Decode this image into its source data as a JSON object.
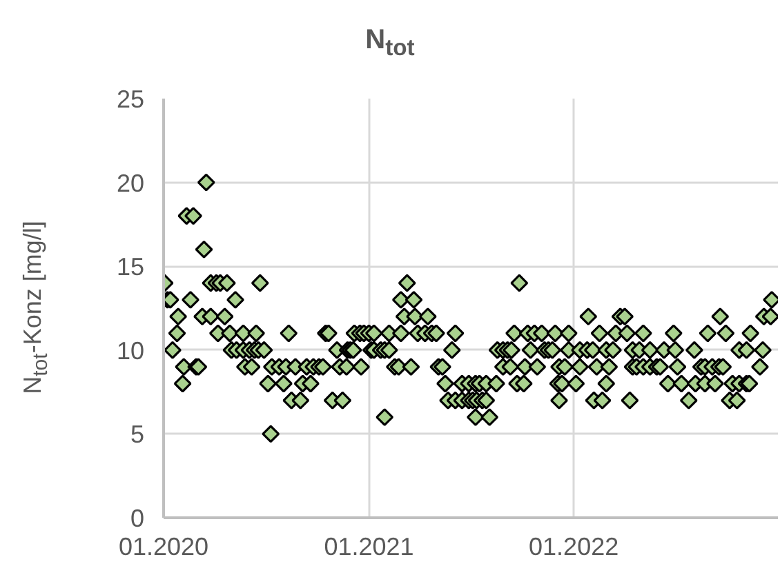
{
  "chart_data": {
    "type": "scatter",
    "title": "N$_{tot}$",
    "ylabel": "N$_{tot}$-Konz [mg/l]",
    "xlim": [
      "2020-01-01",
      "2022-12-31"
    ],
    "xticks": [
      {
        "value": "2020-01-01",
        "label": "01.2020"
      },
      {
        "value": "2021-01-01",
        "label": "01.2021"
      },
      {
        "value": "2022-01-01",
        "label": "01.2022"
      }
    ],
    "ylim": [
      0,
      25
    ],
    "yticks": [
      0,
      5,
      10,
      15,
      20,
      25
    ],
    "grid": true,
    "marker": "diamond",
    "series": [
      {
        "color": "#a9d18e",
        "x": [
          "2020-01-03",
          "2020-03-25",
          "2020-04-04",
          "2020-04-11",
          "2020-04-23",
          "2020-06-21",
          "2021-03-10",
          "2021-09-26",
          "2020-03-17",
          "2020-02-11",
          "2020-02-23",
          "2020-03-13",
          "2020-01-08",
          "2020-01-13",
          "2020-02-18",
          "2020-05-08",
          "2021-02-27",
          "2021-03-22",
          "2022-12-20",
          "2020-01-27",
          "2020-03-10",
          "2020-03-25",
          "2020-04-19",
          "2021-03-05",
          "2021-03-24",
          "2021-04-16",
          "2022-01-27",
          "2022-03-25",
          "2022-04-02",
          "2022-09-19",
          "2022-12-06",
          "2022-12-18",
          "2020-01-25",
          "2020-04-07",
          "2020-04-28",
          "2020-05-22",
          "2020-06-14",
          "2020-08-11",
          "2020-10-16",
          "2020-10-21",
          "2020-12-06",
          "2020-12-16",
          "2020-12-23",
          "2021-01-01",
          "2021-01-10",
          "2021-02-06",
          "2021-02-27",
          "2021-03-29",
          "2021-04-11",
          "2021-04-23",
          "2021-05-01",
          "2021-06-04",
          "2021-09-17",
          "2021-10-11",
          "2021-10-23",
          "2021-11-05",
          "2021-11-29",
          "2021-12-23",
          "2022-02-16",
          "2022-03-17",
          "2022-04-06",
          "2022-05-05",
          "2022-06-28",
          "2022-08-28",
          "2022-09-29",
          "2022-11-12",
          "2020-01-17",
          "2020-05-01",
          "2020-05-10",
          "2020-05-22",
          "2020-06-02",
          "2020-06-11",
          "2020-06-18",
          "2020-06-28",
          "2020-11-05",
          "2020-11-24",
          "2020-11-29",
          "2020-12-04",
          "2021-01-05",
          "2021-01-10",
          "2021-01-22",
          "2021-01-29",
          "2021-02-06",
          "2021-05-29",
          "2021-08-18",
          "2021-08-28",
          "2021-09-05",
          "2021-09-12",
          "2021-10-16",
          "2021-11-10",
          "2021-11-17",
          "2021-11-24",
          "2021-12-23",
          "2022-01-12",
          "2022-01-25",
          "2022-02-04",
          "2022-02-28",
          "2022-03-12",
          "2022-04-16",
          "2022-04-28",
          "2022-05-17",
          "2022-06-11",
          "2022-07-01",
          "2022-08-04",
          "2022-10-23",
          "2022-11-05",
          "2022-12-04",
          "2020-02-06",
          "2020-02-28",
          "2020-03-03",
          "2020-05-25",
          "2020-06-06",
          "2020-07-12",
          "2020-07-25",
          "2020-08-06",
          "2020-08-23",
          "2020-09-12",
          "2020-09-24",
          "2020-10-04",
          "2020-10-11",
          "2020-11-10",
          "2020-11-22",
          "2020-12-18",
          "2021-02-16",
          "2021-02-23",
          "2021-03-17",
          "2021-05-05",
          "2021-05-12",
          "2021-08-28",
          "2021-09-10",
          "2021-10-06",
          "2021-10-28",
          "2021-12-06",
          "2021-12-16",
          "2022-01-12",
          "2022-02-11",
          "2022-03-05",
          "2022-04-16",
          "2022-04-23",
          "2022-05-05",
          "2022-05-17",
          "2022-05-29",
          "2022-06-04",
          "2022-07-05",
          "2022-08-16",
          "2022-08-23",
          "2022-09-05",
          "2022-09-17",
          "2022-09-24",
          "2022-11-29",
          "2020-02-04",
          "2020-07-05",
          "2020-08-02",
          "2020-09-05",
          "2020-09-19",
          "2021-05-17",
          "2021-06-16",
          "2021-06-28",
          "2021-07-10",
          "2021-07-17",
          "2021-07-29",
          "2021-08-16",
          "2021-09-22",
          "2021-10-04",
          "2021-12-04",
          "2021-12-11",
          "2022-01-05",
          "2022-02-28",
          "2022-06-18",
          "2022-07-12",
          "2022-08-06",
          "2022-08-23",
          "2022-09-10",
          "2022-10-11",
          "2022-10-23",
          "2022-11-05",
          "2022-11-10",
          "2020-08-16",
          "2020-09-01",
          "2020-10-28",
          "2020-11-15",
          "2021-05-22",
          "2021-06-04",
          "2021-06-16",
          "2021-06-28",
          "2021-07-05",
          "2021-07-12",
          "2021-07-22",
          "2021-07-29",
          "2021-12-06",
          "2022-02-06",
          "2022-02-21",
          "2022-04-11",
          "2022-07-25",
          "2022-10-06",
          "2022-10-19",
          "2021-01-29",
          "2021-07-10",
          "2021-08-04",
          "2020-07-10"
        ],
        "values": [
          14,
          14,
          14,
          14,
          14,
          14,
          14,
          14,
          20,
          18,
          18,
          16,
          13,
          13,
          13,
          13,
          13,
          13,
          13,
          12,
          12,
          12,
          12,
          12,
          12,
          12,
          12,
          12,
          12,
          12,
          12,
          12,
          11,
          11,
          11,
          11,
          11,
          11,
          11,
          11,
          11,
          11,
          11,
          11,
          11,
          11,
          11,
          11,
          11,
          11,
          11,
          11,
          11,
          11,
          11,
          11,
          11,
          11,
          11,
          11,
          11,
          11,
          11,
          11,
          11,
          11,
          10,
          10,
          10,
          10,
          10,
          10,
          10,
          10,
          10,
          10,
          10,
          10,
          10,
          10,
          10,
          10,
          10,
          10,
          10,
          10,
          10,
          10,
          10,
          10,
          10,
          10,
          10,
          10,
          10,
          10,
          10,
          10,
          10,
          10,
          10,
          10,
          10,
          10,
          10,
          10,
          10,
          9,
          9,
          9,
          9,
          9,
          9,
          9,
          9,
          9,
          9,
          9,
          9,
          9,
          9,
          9,
          9,
          9,
          9,
          9,
          9,
          9,
          9,
          9,
          9,
          9,
          9,
          9,
          9,
          9,
          9,
          9,
          9,
          9,
          9,
          9,
          9,
          9,
          9,
          9,
          9,
          9,
          9,
          9,
          8,
          8,
          8,
          8,
          8,
          8,
          8,
          8,
          8,
          8,
          8,
          8,
          8,
          8,
          8,
          8,
          8,
          8,
          8,
          8,
          8,
          8,
          8,
          8,
          8,
          8,
          8,
          7,
          7,
          7,
          7,
          7,
          7,
          7,
          7,
          7,
          7,
          7,
          7,
          7,
          7,
          7,
          7,
          7,
          7,
          7,
          6,
          6,
          6,
          5
        ]
      }
    ]
  }
}
